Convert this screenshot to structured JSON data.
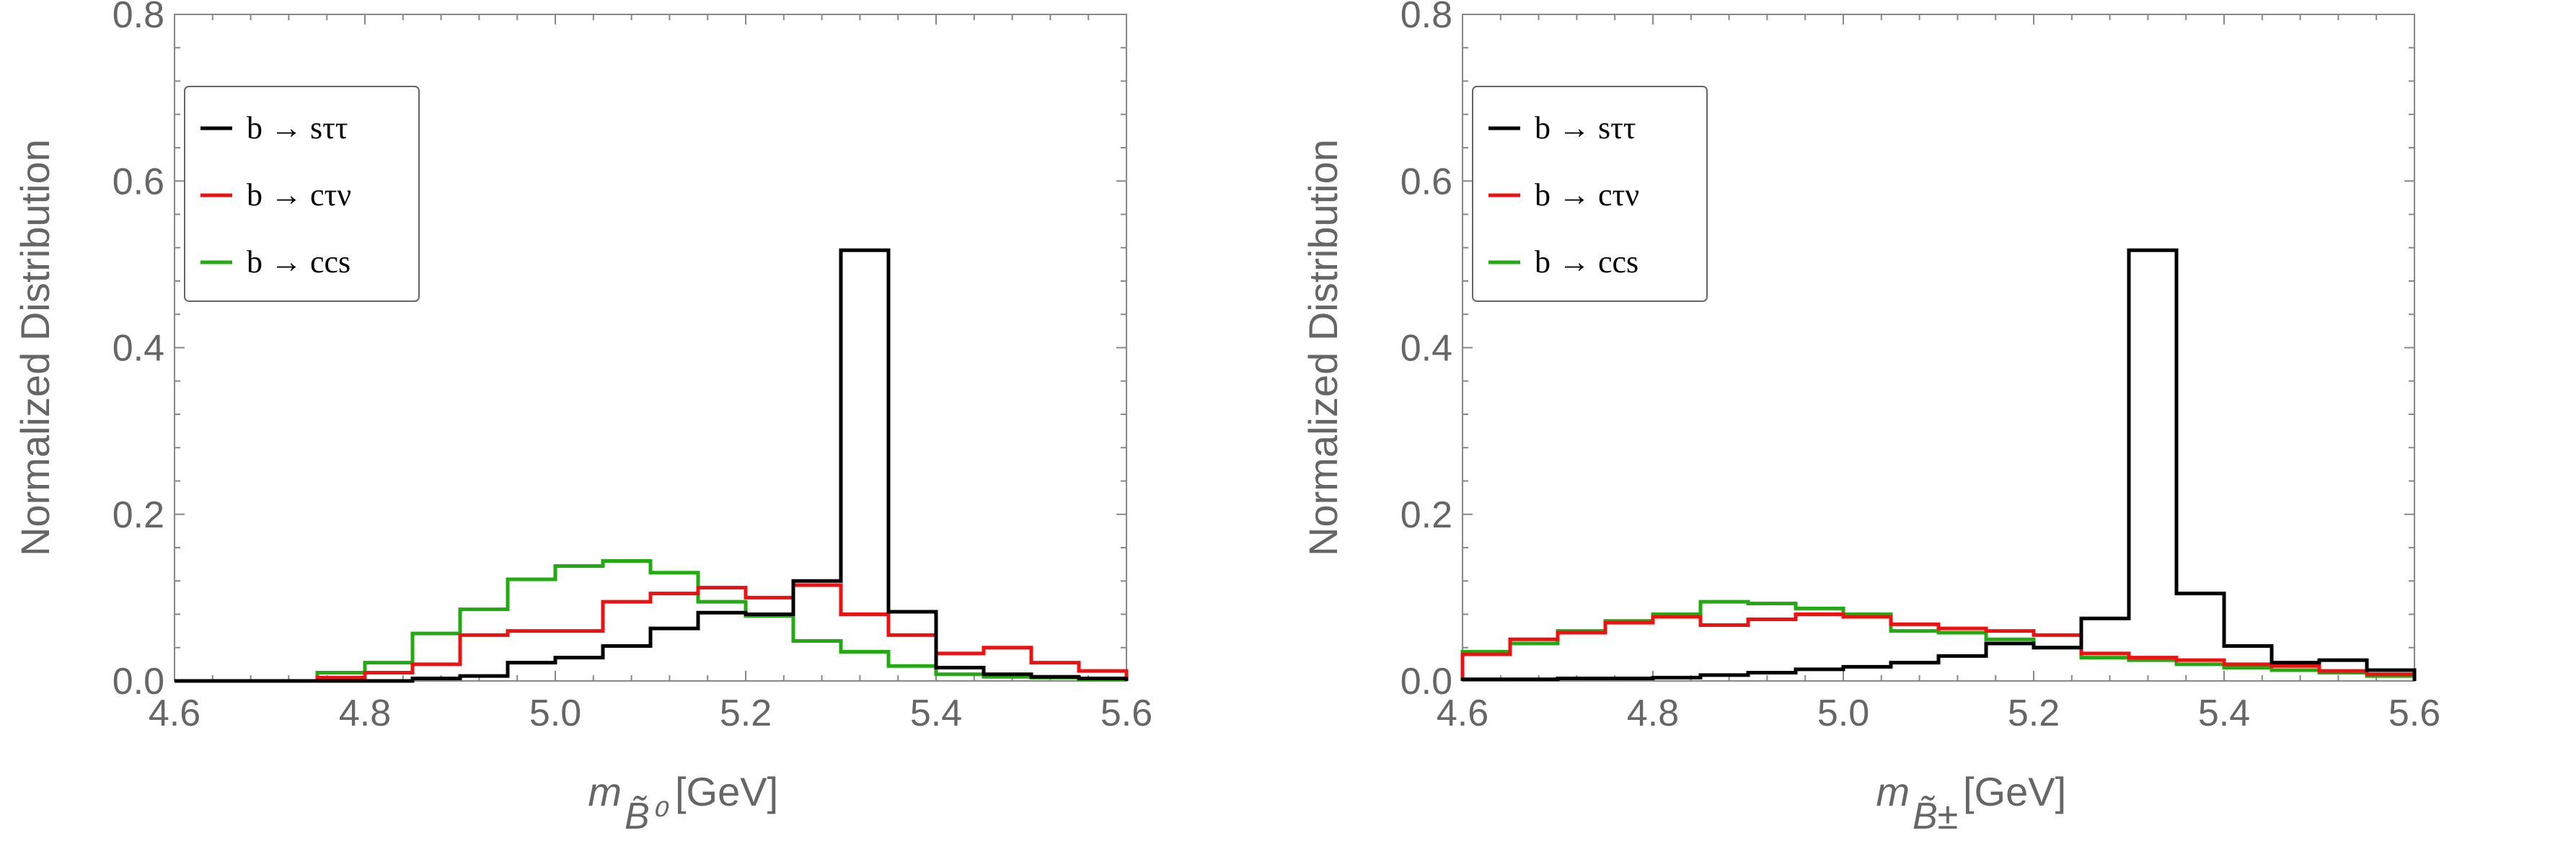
{
  "chart_data": [
    {
      "type": "histogram",
      "xlabel": "m",
      "xlabel_subscript": "B̃⁰",
      "xlabel_unit": "[GeV]",
      "ylabel": "Normalized Distribution",
      "xlim": [
        4.6,
        5.6
      ],
      "ylim": [
        0.0,
        0.8
      ],
      "xticks": [
        "4.6",
        "4.8",
        "5.0",
        "5.2",
        "5.4",
        "5.6"
      ],
      "yticks": [
        "0.0",
        "0.2",
        "0.4",
        "0.6",
        "0.8"
      ],
      "legend_position": "top-left",
      "bin_edges": [
        4.6,
        4.65,
        4.7,
        4.75,
        4.8,
        4.85,
        4.9,
        4.95,
        5.0,
        5.05,
        5.1,
        5.15,
        5.2,
        5.25,
        5.3,
        5.35,
        5.4,
        5.45,
        5.5,
        5.55,
        5.6
      ],
      "series": [
        {
          "name": "b → sττ",
          "color": "#000000",
          "values": [
            0.0,
            0.0,
            0.0,
            0.0,
            0.0,
            0.003,
            0.006,
            0.022,
            0.028,
            0.042,
            0.063,
            0.082,
            0.08,
            0.12,
            0.517,
            0.083,
            0.016,
            0.008,
            0.005,
            0.003
          ]
        },
        {
          "name": "b → cτν",
          "color": "#ee1111",
          "values": [
            0.0,
            0.0,
            0.0,
            0.004,
            0.01,
            0.02,
            0.055,
            0.06,
            0.06,
            0.095,
            0.105,
            0.112,
            0.1,
            0.115,
            0.08,
            0.055,
            0.033,
            0.04,
            0.022,
            0.012
          ]
        },
        {
          "name": "b → ccs",
          "color": "#22aa11",
          "values": [
            0.0,
            0.0,
            0.0,
            0.01,
            0.022,
            0.057,
            0.086,
            0.122,
            0.138,
            0.144,
            0.13,
            0.095,
            0.078,
            0.048,
            0.035,
            0.018,
            0.008,
            0.005,
            0.004,
            0.002
          ]
        }
      ]
    },
    {
      "type": "histogram",
      "xlabel": "m",
      "xlabel_subscript": "B̃±",
      "xlabel_unit": "[GeV]",
      "ylabel": "Normalized Distribution",
      "xlim": [
        4.6,
        5.6
      ],
      "ylim": [
        0.0,
        0.8
      ],
      "xticks": [
        "4.6",
        "4.8",
        "5.0",
        "5.2",
        "5.4",
        "5.6"
      ],
      "yticks": [
        "0.0",
        "0.2",
        "0.4",
        "0.6",
        "0.8"
      ],
      "legend_position": "top-left",
      "bin_edges": [
        4.6,
        4.65,
        4.7,
        4.75,
        4.8,
        4.85,
        4.9,
        4.95,
        5.0,
        5.05,
        5.1,
        5.15,
        5.2,
        5.25,
        5.3,
        5.35,
        5.4,
        5.45,
        5.5,
        5.55,
        5.6
      ],
      "series": [
        {
          "name": "b → sττ",
          "color": "#000000",
          "values": [
            0.002,
            0.002,
            0.003,
            0.003,
            0.004,
            0.007,
            0.01,
            0.014,
            0.017,
            0.022,
            0.03,
            0.045,
            0.04,
            0.075,
            0.517,
            0.105,
            0.042,
            0.022,
            0.025,
            0.013
          ]
        },
        {
          "name": "b → cτν",
          "color": "#ee1111",
          "values": [
            0.032,
            0.05,
            0.058,
            0.07,
            0.077,
            0.067,
            0.074,
            0.08,
            0.077,
            0.068,
            0.063,
            0.06,
            0.055,
            0.033,
            0.028,
            0.025,
            0.02,
            0.018,
            0.012,
            0.008
          ]
        },
        {
          "name": "b → ccs",
          "color": "#22aa11",
          "values": [
            0.035,
            0.045,
            0.06,
            0.072,
            0.08,
            0.095,
            0.093,
            0.087,
            0.08,
            0.06,
            0.058,
            0.05,
            0.04,
            0.028,
            0.025,
            0.02,
            0.016,
            0.013,
            0.01,
            0.006
          ]
        }
      ]
    }
  ]
}
